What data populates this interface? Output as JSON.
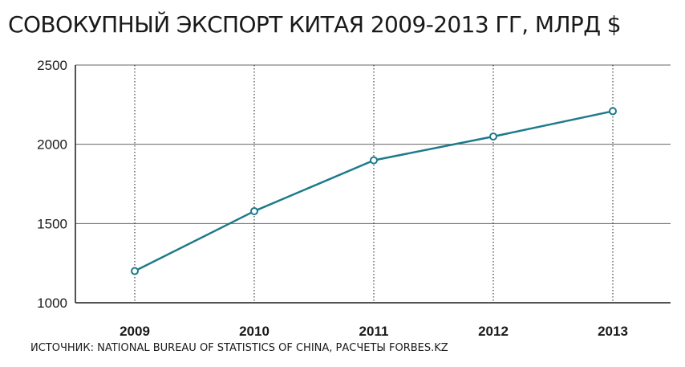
{
  "title": "СОВОКУПНЫЙ ЭКСПОРТ КИТАЯ 2009-2013 ГГ, МЛРД $",
  "source": "ИСТОЧНИК: NATIONAL BUREAU OF STATISTICS OF CHINA, РАСЧЕТЫ FORBES.KZ",
  "colors": {
    "line": "#1e7a8c",
    "axis": "#1a1a1a",
    "grid": "#666666"
  },
  "chart_data": {
    "type": "line",
    "title": "СОВОКУПНЫЙ ЭКСПОРТ КИТАЯ 2009-2013 ГГ, МЛРД $",
    "xlabel": "",
    "ylabel": "",
    "categories": [
      "2009",
      "2010",
      "2011",
      "2012",
      "2013"
    ],
    "series": [
      {
        "values": [
          1200,
          1578,
          1899,
          2049,
          2209
        ]
      }
    ],
    "ylim": [
      1000,
      2500
    ],
    "yticks": [
      1000,
      1500,
      2000,
      2500
    ],
    "ytick_labels": [
      "1000",
      "1500",
      "2000",
      "2500"
    ],
    "grid": {
      "horizontal": "solid",
      "vertical": "dotted"
    },
    "legend": "none",
    "markers": "hollow-circle"
  }
}
